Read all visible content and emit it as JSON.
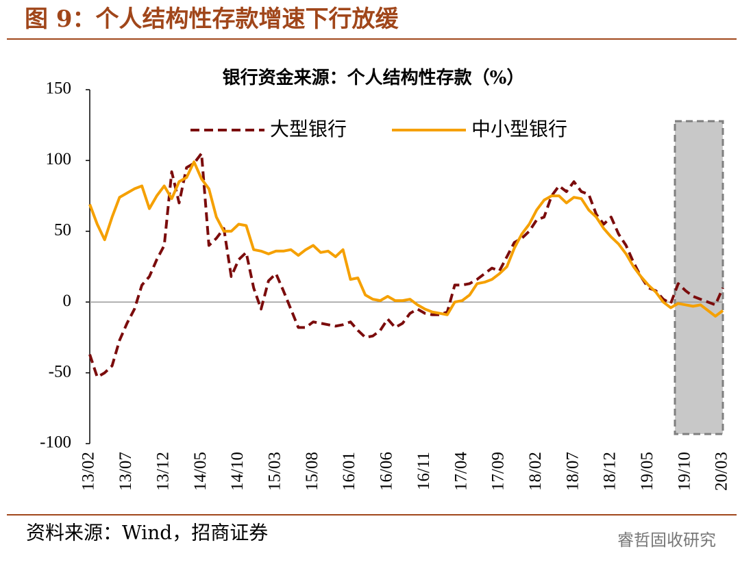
{
  "header": {
    "title": "图 9：个人结构性存款增速下行放缓"
  },
  "chart_data": {
    "type": "line",
    "title": "银行资金来源：个人结构性存款（%）",
    "categories": [
      "13/02",
      null,
      null,
      null,
      null,
      "13/07",
      null,
      null,
      null,
      null,
      "13/12",
      null,
      null,
      null,
      null,
      "14/05",
      null,
      null,
      null,
      null,
      "14/10",
      null,
      null,
      null,
      null,
      "15/03",
      null,
      null,
      null,
      null,
      "15/08",
      null,
      null,
      null,
      null,
      "16/01",
      null,
      null,
      null,
      null,
      "16/06",
      null,
      null,
      null,
      null,
      "16/11",
      null,
      null,
      null,
      null,
      "17/04",
      null,
      null,
      null,
      null,
      "17/09",
      null,
      null,
      null,
      null,
      "18/02",
      null,
      null,
      null,
      null,
      "18/07",
      null,
      null,
      null,
      null,
      "18/12",
      null,
      null,
      null,
      null,
      "19/05",
      null,
      null,
      null,
      null,
      "19/10",
      null,
      null,
      null,
      null,
      "20/03"
    ],
    "series": [
      {
        "name": "大型银行",
        "color": "#7b0c0c",
        "dashed": true,
        "values": [
          -37,
          -53,
          -50,
          -45,
          -27,
          -15,
          -5,
          12,
          18,
          30,
          40,
          92,
          70,
          95,
          98,
          105,
          40,
          45,
          52,
          18,
          30,
          35,
          10,
          -5,
          15,
          20,
          8,
          -5,
          -18,
          -18,
          -14,
          -15,
          -16,
          -17,
          -16,
          -14,
          -20,
          -25,
          -24,
          -20,
          -12,
          -18,
          -15,
          -8,
          -5,
          -8,
          -9,
          -9,
          -7,
          12,
          12,
          13,
          16,
          20,
          24,
          22,
          32,
          42,
          45,
          50,
          58,
          60,
          75,
          82,
          78,
          85,
          78,
          76,
          62,
          55,
          60,
          48,
          40,
          28,
          18,
          10,
          8,
          2,
          -1,
          13,
          8,
          4,
          2,
          0,
          -2,
          10
        ]
      },
      {
        "name": "中小型银行",
        "color": "#f5a000",
        "dashed": false,
        "values": [
          69,
          55,
          44,
          60,
          74,
          77,
          80,
          82,
          66,
          75,
          82,
          73,
          85,
          88,
          99,
          87,
          80,
          60,
          50,
          50,
          55,
          54,
          37,
          36,
          34,
          36,
          36,
          37,
          33,
          37,
          40,
          35,
          36,
          32,
          37,
          16,
          17,
          5,
          2,
          1,
          4,
          1,
          1,
          2,
          -2,
          -5,
          -7,
          -8,
          -9,
          0,
          1,
          5,
          13,
          14,
          16,
          20,
          25,
          38,
          48,
          55,
          65,
          72,
          75,
          75,
          70,
          74,
          73,
          65,
          60,
          52,
          46,
          41,
          34,
          25,
          18,
          12,
          7,
          0,
          -4,
          -1,
          -2,
          -3,
          -2,
          -6,
          -10,
          -6
        ]
      }
    ],
    "ylim": [
      -100,
      150
    ],
    "yticks": [
      150,
      100,
      50,
      0,
      -50,
      -100
    ],
    "grid": false,
    "legend": "top"
  },
  "footer": {
    "source": "资料来源：Wind，招商证券",
    "watermark": "睿哲固收研究"
  }
}
